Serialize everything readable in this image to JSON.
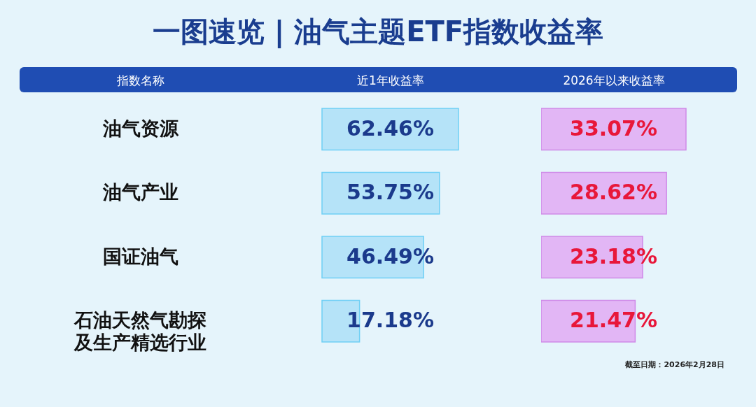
{
  "chart_data": [
    {
      "type": "bar",
      "orientation": "horizontal",
      "title": "一图速览 | 油气主题ETF指数收益率",
      "ylabel": "指数名称",
      "xlabel": "近1年收益率",
      "tick_labels": "y",
      "categories": [
        "油气资源",
        "油气产业",
        "国证油气",
        "石油天然气勘探及生产精选行业"
      ],
      "values": [
        62.46,
        53.75,
        46.49,
        17.18
      ],
      "value_labels": [
        "62.46%",
        "53.75%",
        "46.49%",
        "17.18%"
      ],
      "color": "#b5e3f8"
    },
    {
      "type": "bar",
      "orientation": "horizontal",
      "xlabel": "2026年以来收益率",
      "tick_labels": false,
      "categories": [
        "油气资源",
        "油气产业",
        "国证油气",
        "石油天然气勘探及生产精选行业"
      ],
      "values": [
        33.07,
        28.62,
        23.18,
        21.47
      ],
      "value_labels": [
        "33.07%",
        "28.62%",
        "23.18%",
        "21.47%"
      ],
      "color": "#e2b6f5",
      "annotations": [
        "截至日期：2026年2月28日"
      ]
    }
  ]
}
